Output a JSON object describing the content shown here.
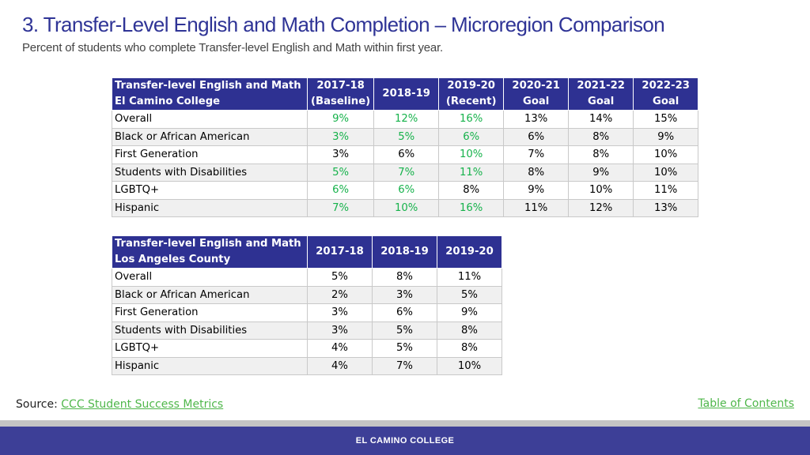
{
  "title": "3. Transfer-Level English and Math Completion – Microregion Comparison",
  "subtitle": "Percent of students who complete Transfer-level English and Math within first year.",
  "colors": {
    "header_bg": "#2e3192",
    "highlight": "#16b24b",
    "footer_bg": "#3d3f97"
  },
  "table1": {
    "header": {
      "label_line1": "Transfer-level English and Math",
      "label_line2": "El Camino College",
      "cols": [
        {
          "line1": "2017-18",
          "line2": "(Baseline)"
        },
        {
          "line1": "2018-19",
          "line2": ""
        },
        {
          "line1": "2019-20",
          "line2": "(Recent)"
        },
        {
          "line1": "2020-21",
          "line2": "Goal"
        },
        {
          "line1": "2021-22",
          "line2": "Goal"
        },
        {
          "line1": "2022-23",
          "line2": "Goal"
        }
      ]
    },
    "rows": [
      {
        "label": "Overall",
        "values": [
          "9%",
          "12%",
          "16%",
          "13%",
          "14%",
          "15%"
        ],
        "green": [
          true,
          true,
          true,
          false,
          false,
          false
        ]
      },
      {
        "label": "Black or African American",
        "values": [
          "3%",
          "5%",
          "6%",
          "6%",
          "8%",
          "9%"
        ],
        "green": [
          true,
          true,
          true,
          false,
          false,
          false
        ]
      },
      {
        "label": "First Generation",
        "values": [
          "3%",
          "6%",
          "10%",
          "7%",
          "8%",
          "10%"
        ],
        "green": [
          false,
          false,
          true,
          false,
          false,
          false
        ]
      },
      {
        "label": "Students with Disabilities",
        "values": [
          "5%",
          "7%",
          "11%",
          "8%",
          "9%",
          "10%"
        ],
        "green": [
          true,
          true,
          true,
          false,
          false,
          false
        ]
      },
      {
        "label": "LGBTQ+",
        "values": [
          "6%",
          "6%",
          "8%",
          "9%",
          "10%",
          "11%"
        ],
        "green": [
          true,
          true,
          false,
          false,
          false,
          false
        ]
      },
      {
        "label": "Hispanic",
        "values": [
          "7%",
          "10%",
          "16%",
          "11%",
          "12%",
          "13%"
        ],
        "green": [
          true,
          true,
          true,
          false,
          false,
          false
        ]
      }
    ]
  },
  "table2": {
    "header": {
      "label_line1": "Transfer-level English and Math",
      "label_line2": "Los Angeles County",
      "cols": [
        "2017-18",
        "2018-19",
        "2019-20"
      ]
    },
    "rows": [
      {
        "label": "Overall",
        "values": [
          "5%",
          "8%",
          "11%"
        ]
      },
      {
        "label": "Black or African American",
        "values": [
          "2%",
          "3%",
          "5%"
        ]
      },
      {
        "label": "First Generation",
        "values": [
          "3%",
          "6%",
          "9%"
        ]
      },
      {
        "label": "Students with Disabilities",
        "values": [
          "3%",
          "5%",
          "8%"
        ]
      },
      {
        "label": "LGBTQ+",
        "values": [
          "4%",
          "5%",
          "8%"
        ]
      },
      {
        "label": "Hispanic",
        "values": [
          "4%",
          "7%",
          "10%"
        ]
      }
    ]
  },
  "source": {
    "label": "Source:",
    "link_text": "CCC Student Success Metrics"
  },
  "toc_link": "Table of Contents",
  "footer_text": "EL CAMINO COLLEGE"
}
